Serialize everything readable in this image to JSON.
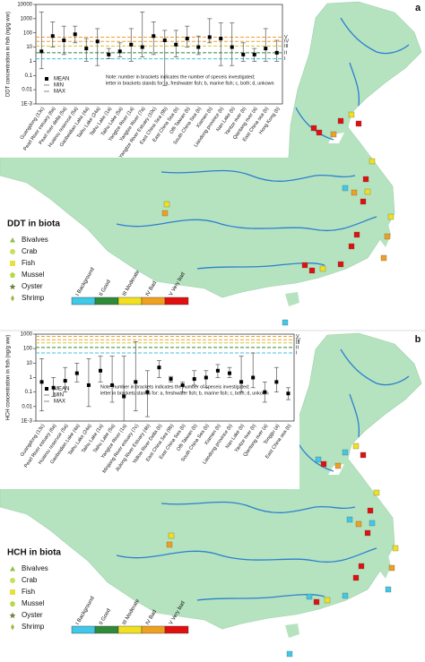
{
  "chart_data": [
    {
      "type": "errorbar",
      "panel": "a",
      "log_scale": true,
      "y_label": "DDT concentration in fish (ng/g ww)",
      "ylim": [
        0.001,
        10000
      ],
      "yticks": [
        10000,
        1000,
        100,
        10,
        1,
        0.1,
        0.01,
        {
          "value": 0.001,
          "label": "1E-3"
        }
      ],
      "categories": [
        "Guangdong (13c)",
        "Pearl River estuary (6a)",
        "Pearl river delta (5a)",
        "Huairou reservoir (5a)",
        "Gaobeidian Lake (4a)",
        "Taihu Lake (24a)",
        "Taihu Lake (1a)",
        "Taihu Lake (5a)",
        "Yangtze River (1a)",
        "Yangtze River (7a)",
        "Yangtze River Estuary (10c)",
        "East China Sea (9b)",
        "East China Sea (b)",
        "Offi Taiwan (b)",
        "South China Sea (b)",
        "Xiamen (b)",
        "Liaodong province (b)",
        "Nan Lake (b)",
        "Yantze river (b)",
        "Qiantang river (a)",
        "East China sea (b)",
        "Hong Kong (b)"
      ],
      "series": [
        {
          "name": "MEAN",
          "color": "#000000",
          "values": [
            5,
            60,
            30,
            80,
            8,
            25,
            3,
            5,
            15,
            10,
            60,
            30,
            15,
            40,
            10,
            50,
            40,
            10,
            3,
            3,
            8,
            4
          ]
        },
        {
          "name": "MIN",
          "color": "#555555",
          "values": [
            0.3,
            10,
            3,
            20,
            1,
            0.5,
            1.5,
            2,
            1,
            2,
            3,
            0.02,
            2,
            10,
            3,
            20,
            0.5,
            0.5,
            1,
            1,
            1,
            1
          ]
        },
        {
          "name": "MAX",
          "color": "#555555",
          "values": [
            3000,
            600,
            300,
            300,
            40,
            200,
            8,
            20,
            200,
            3000,
            600,
            150,
            150,
            300,
            60,
            1000,
            500,
            500,
            20,
            8,
            200,
            30
          ]
        }
      ],
      "thresholds": [
        {
          "label": "V",
          "value": 50,
          "color": "#f0a030"
        },
        {
          "label": "IV",
          "value": 25,
          "color": "#f0a030"
        },
        {
          "label": "III",
          "value": 12,
          "color": "#d8c830"
        },
        {
          "label": "II",
          "value": 4,
          "color": "#2f8a3a"
        },
        {
          "label": "I",
          "value": 1.5,
          "color": "#40c0d8"
        }
      ],
      "note": [
        "Note: number in brackets indicates the number of speceis investigated;",
        "letter in brackets stands for: a, freshwater fish; b, marine fish; c, both; d, unkown"
      ],
      "map_legend": {
        "title": "DDT in biota",
        "items": [
          "Bivalves",
          "Crab",
          "Fish",
          "Mussel",
          "Oyster",
          "Shrimp"
        ],
        "classes": [
          {
            "label": "I Background",
            "color": "#40c8e8"
          },
          {
            "label": "II Good",
            "color": "#2f8a3a"
          },
          {
            "label": "III Moderate",
            "color": "#f0e020"
          },
          {
            "label": "IV Bad",
            "color": "#f0a020"
          },
          {
            "label": "V Very bad",
            "color": "#e01010"
          }
        ]
      }
    },
    {
      "type": "errorbar",
      "panel": "b",
      "log_scale": true,
      "y_label": "HCH concentration in fish (ng/g ww)",
      "ylim": [
        0.001,
        1000
      ],
      "yticks": [
        1000,
        100,
        10,
        1,
        0.1,
        0.01,
        {
          "value": 0.001,
          "label": "1E-3"
        }
      ],
      "categories": [
        "Guangdong (13c)",
        "Pearl River estuary (6a)",
        "Huairou reservoir (5a)",
        "Gaobeidian Lake (4a)",
        "Taihu Lake (24a)",
        "Taihu Lake (1a)",
        "Taihu Lake (5a)",
        "Yangtze River (1a)",
        "Minjiang River estuary (7c)",
        "Jiulong River Estuary (4b)",
        "Yellow River Delta (b)",
        "East China Sea (9b)",
        "East China Sea (b)",
        "Offi Taiwan (b)",
        "South China Sea (b)",
        "Xiamen (b)",
        "Liaodong province (b)",
        "Nan Lake (b)",
        "Yantze river (b)",
        "Qiantang river (a)",
        "Tonggu (a)",
        "East China sea (b)"
      ],
      "series": [
        {
          "name": "MEAN",
          "color": "#000000",
          "values": [
            0.5,
            0.2,
            0.6,
            2,
            0.3,
            3,
            0.3,
            0.05,
            0.5,
            0.1,
            5,
            0.8,
            0.3,
            0.8,
            1,
            3,
            2,
            0.5,
            1,
            0.1,
            0.5,
            0.08
          ]
        },
        {
          "name": "MIN",
          "color": "#555555",
          "values": [
            0.005,
            0.05,
            0.1,
            0.5,
            0.01,
            0.5,
            0.02,
            0.001,
            0.005,
            0.002,
            1,
            0.5,
            0.1,
            0.3,
            0.2,
            1,
            1,
            0.1,
            0.2,
            0.02,
            0.1,
            0.03
          ]
        },
        {
          "name": "MAX",
          "color": "#555555",
          "values": [
            20,
            1,
            5,
            10,
            20,
            30,
            30,
            30,
            300,
            3,
            15,
            1.2,
            0.5,
            3,
            3,
            8,
            5,
            30,
            50,
            0.5,
            5,
            0.2
          ]
        }
      ],
      "thresholds": [
        {
          "label": "V",
          "value": 700,
          "color": "#f0a030"
        },
        {
          "label": "IV",
          "value": 400,
          "color": "#f0a030"
        },
        {
          "label": "III",
          "value": 250,
          "color": "#d8c830"
        },
        {
          "label": "II",
          "value": 120,
          "color": "#2f8a3a"
        },
        {
          "label": "I",
          "value": 50,
          "color": "#40c0d8"
        }
      ],
      "note": [
        "Note: number in brackets indicates the number of speceis investigated;",
        "letter in brackets stands for: a, freshwater fish; b, marine fish; c, both; d, unkown"
      ],
      "map_legend": {
        "title": "HCH in biota",
        "items": [
          "Bivalves",
          "Crab",
          "Fish",
          "Mussel",
          "Oyster",
          "Shrimp"
        ],
        "classes": [
          {
            "label": "I Background",
            "color": "#40c8e8"
          },
          {
            "label": "II Good",
            "color": "#2f8a3a"
          },
          {
            "label": "III Moderate",
            "color": "#f0e020"
          },
          {
            "label": "IV Bad",
            "color": "#f0a020"
          },
          {
            "label": "V Very bad",
            "color": "#e01010"
          }
        ]
      }
    }
  ]
}
